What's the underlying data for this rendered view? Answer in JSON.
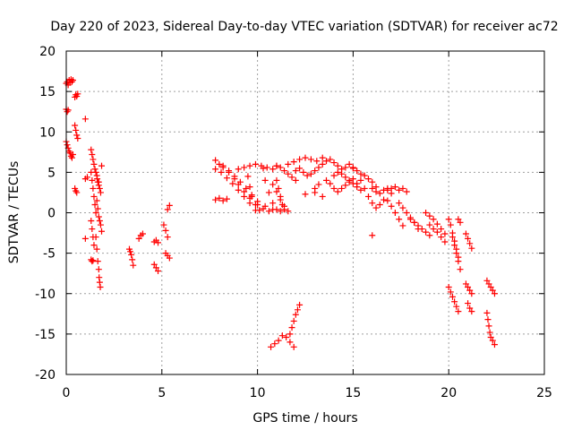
{
  "chart_data": {
    "type": "scatter",
    "title": "Day 220 of 2023, Sidereal Day-to-day VTEC variation (SDTVAR) for receiver ac72",
    "xlabel": "GPS time / hours",
    "ylabel": "SDTVAR / TECUs",
    "xlim": [
      0,
      25
    ],
    "ylim": [
      -20,
      20
    ],
    "xticks": [
      0,
      5,
      10,
      15,
      20,
      25
    ],
    "xtick_labels": [
      "0",
      "5",
      "10",
      "15",
      "20",
      "25"
    ],
    "yticks": [
      -20,
      -15,
      -10,
      -5,
      0,
      5,
      10,
      15,
      20
    ],
    "ytick_labels": [
      "-20",
      "-15",
      "-10",
      "-5",
      "0",
      "5",
      "10",
      "15",
      "20"
    ],
    "grid": true,
    "marker": "+",
    "color": "#ff0000",
    "series": [
      {
        "name": "SDTVAR",
        "segments": [
          {
            "x": [
              0.0,
              0.05,
              0.1,
              0.15,
              0.2,
              0.25,
              0.3,
              0.35
            ],
            "y": [
              16.0,
              16.2,
              15.8,
              16.4,
              16.1,
              16.5,
              16.2,
              16.4
            ]
          },
          {
            "x": [
              0.0,
              0.05,
              0.1
            ],
            "y": [
              12.8,
              12.5,
              12.7
            ]
          },
          {
            "x": [
              0.0,
              0.05,
              0.1,
              0.15,
              0.2,
              0.25,
              0.3,
              0.35
            ],
            "y": [
              8.8,
              8.4,
              8.0,
              7.6,
              7.4,
              7.0,
              6.8,
              7.2
            ]
          },
          {
            "x": [
              0.45,
              0.5,
              0.55,
              0.6
            ],
            "y": [
              14.3,
              14.6,
              14.4,
              14.7
            ]
          },
          {
            "x": [
              0.45,
              0.5,
              0.55,
              0.6
            ],
            "y": [
              10.8,
              10.2,
              9.6,
              9.2
            ]
          },
          {
            "x": [
              0.45,
              0.5,
              0.55
            ],
            "y": [
              3.0,
              2.7,
              2.5
            ]
          },
          {
            "x": [
              1.0
            ],
            "y": [
              11.6
            ]
          },
          {
            "x": [
              1.0,
              1.1
            ],
            "y": [
              4.2,
              4.4
            ]
          },
          {
            "x": [
              1.0
            ],
            "y": [
              -3.2
            ]
          },
          {
            "x": [
              1.3,
              1.35,
              1.4,
              1.45,
              1.5,
              1.55,
              1.6,
              1.62,
              1.65,
              1.7
            ],
            "y": [
              7.8,
              7.2,
              6.6,
              6.0,
              5.4,
              5.0,
              4.6,
              4.2,
              3.8,
              3.4
            ]
          },
          {
            "x": [
              1.3,
              1.35,
              1.4,
              1.45,
              1.5,
              1.55
            ],
            "y": [
              5.0,
              4.0,
              3.0,
              2.0,
              1.0,
              0.0
            ]
          },
          {
            "x": [
              1.3,
              1.35,
              1.4,
              1.45
            ],
            "y": [
              -1.0,
              -2.0,
              -3.0,
              -4.0
            ]
          },
          {
            "x": [
              1.3,
              1.35,
              1.4
            ],
            "y": [
              -5.8,
              -6.0,
              -5.9
            ]
          },
          {
            "x": [
              1.55,
              1.6,
              1.65,
              1.7,
              1.72,
              1.75,
              1.78
            ],
            "y": [
              -3.0,
              -4.5,
              -6.0,
              -7.0,
              -8.0,
              -8.6,
              -9.2
            ]
          },
          {
            "x": [
              1.6,
              1.65,
              1.7,
              1.75,
              1.8,
              1.85
            ],
            "y": [
              1.5,
              0.5,
              -0.5,
              -1.0,
              -1.5,
              -2.3
            ]
          },
          {
            "x": [
              1.7,
              1.75,
              1.8,
              1.85
            ],
            "y": [
              3.8,
              3.0,
              2.5,
              5.8
            ]
          },
          {
            "x": [
              3.3,
              3.35,
              3.4,
              3.45,
              3.5
            ],
            "y": [
              -4.5,
              -4.8,
              -5.2,
              -5.8,
              -6.5
            ]
          },
          {
            "x": [
              3.8,
              3.9,
              4.0
            ],
            "y": [
              -3.2,
              -2.8,
              -2.6
            ]
          },
          {
            "x": [
              4.6,
              4.7,
              4.8
            ],
            "y": [
              -3.6,
              -3.4,
              -3.7
            ]
          },
          {
            "x": [
              4.6,
              4.7,
              4.8
            ],
            "y": [
              -6.4,
              -6.8,
              -7.2
            ]
          },
          {
            "x": [
              5.1,
              5.2,
              5.3
            ],
            "y": [
              -1.5,
              -2.2,
              -3.0
            ]
          },
          {
            "x": [
              5.3,
              5.4
            ],
            "y": [
              0.4,
              0.9
            ]
          },
          {
            "x": [
              5.2,
              5.3,
              5.4
            ],
            "y": [
              -5.0,
              -5.3,
              -5.6
            ]
          },
          {
            "x": [
              7.8,
              8.0,
              8.2,
              8.4
            ],
            "y": [
              1.6,
              1.8,
              1.5,
              1.7
            ]
          },
          {
            "x": [
              7.8,
              8.0,
              8.2,
              8.5,
              8.8,
              9.0,
              9.3,
              9.6,
              10.0,
              10.3,
              10.6
            ],
            "y": [
              6.5,
              6.0,
              5.6,
              5.0,
              4.2,
              3.5,
              2.6,
              1.8,
              1.0,
              0.5,
              0.2
            ]
          },
          {
            "x": [
              7.8,
              8.1,
              8.4,
              8.7,
              9.0,
              9.3,
              9.6,
              9.9
            ],
            "y": [
              5.4,
              5.0,
              4.3,
              3.6,
              2.8,
              2.0,
              1.2,
              0.3
            ]
          },
          {
            "x": [
              8.2,
              8.5,
              8.8,
              9.1,
              9.4,
              9.7,
              10.0,
              10.4,
              10.8
            ],
            "y": [
              5.8,
              5.2,
              4.5,
              3.8,
              3.0,
              2.2,
              1.4,
              0.8,
              0.4
            ]
          },
          {
            "x": [
              9.0,
              9.3,
              9.6,
              9.9,
              10.2,
              10.5,
              10.8,
              11.0
            ],
            "y": [
              5.4,
              5.6,
              5.8,
              6.0,
              5.8,
              5.6,
              5.4,
              5.8
            ]
          },
          {
            "x": [
              9.5,
              9.6,
              9.7,
              9.9,
              10.1
            ],
            "y": [
              4.5,
              3.2,
              2.0,
              1.0,
              0.3
            ]
          },
          {
            "x": [
              10.3,
              10.4,
              10.6,
              10.8,
              11.0,
              11.2
            ],
            "y": [
              5.5,
              4.0,
              2.5,
              1.2,
              0.4,
              0.2
            ]
          },
          {
            "x": [
              11.0,
              11.2,
              11.4,
              11.6,
              11.8,
              12.0
            ],
            "y": [
              5.8,
              5.6,
              5.2,
              4.8,
              4.4,
              4.0
            ]
          },
          {
            "x": [
              11.0,
              11.1,
              11.2,
              11.3,
              11.4
            ],
            "y": [
              4.0,
              3.0,
              2.0,
              1.0,
              0.4
            ]
          },
          {
            "x": [
              10.8,
              11.0,
              11.2,
              11.4,
              11.6
            ],
            "y": [
              3.5,
              2.6,
              1.6,
              0.8,
              0.2
            ]
          },
          {
            "x": [
              12.0,
              12.2,
              12.4,
              12.6,
              12.8,
              13.0,
              13.2
            ],
            "y": [
              5.2,
              5.5,
              5.0,
              4.6,
              4.8,
              5.2,
              5.6
            ]
          },
          {
            "x": [
              11.6,
              11.9,
              12.2,
              12.5,
              12.8,
              13.1,
              13.4
            ],
            "y": [
              6.0,
              6.3,
              6.6,
              6.8,
              6.6,
              6.4,
              6.8
            ]
          },
          {
            "x": [
              12.5,
              13.0
            ],
            "y": [
              2.3,
              2.5
            ]
          },
          {
            "x": [
              13.0,
              13.2,
              13.4
            ],
            "y": [
              3.0,
              3.5,
              2.0
            ]
          },
          {
            "x": [
              13.4,
              13.6,
              13.8,
              14.0,
              14.2,
              14.4,
              14.6,
              14.8,
              15.0
            ],
            "y": [
              6.0,
              6.4,
              6.6,
              6.2,
              5.8,
              5.4,
              5.6,
              6.0,
              5.6
            ]
          },
          {
            "x": [
              13.6,
              13.8,
              14.0,
              14.2,
              14.4,
              14.6,
              14.8,
              15.0,
              15.2
            ],
            "y": [
              4.0,
              3.6,
              3.0,
              2.6,
              3.0,
              3.4,
              3.8,
              4.2,
              3.6
            ]
          },
          {
            "x": [
              14.0,
              14.2,
              14.4,
              14.6,
              14.8,
              15.0,
              15.2,
              15.4
            ],
            "y": [
              4.6,
              5.0,
              4.8,
              4.4,
              4.0,
              3.6,
              3.2,
              2.8
            ]
          },
          {
            "x": [
              15.0,
              15.2,
              15.4,
              15.6,
              15.8,
              16.0,
              16.2
            ],
            "y": [
              5.5,
              5.2,
              4.8,
              4.6,
              4.2,
              3.8,
              3.2
            ]
          },
          {
            "x": [
              15.4,
              15.6,
              15.8,
              16.0,
              16.2,
              16.4,
              16.6
            ],
            "y": [
              4.0,
              3.0,
              2.0,
              1.2,
              0.6,
              1.0,
              1.6
            ]
          },
          {
            "x": [
              16.0,
              16.2,
              16.4,
              16.6,
              16.8,
              17.0
            ],
            "y": [
              3.0,
              2.6,
              2.4,
              2.8,
              3.0,
              2.4
            ]
          },
          {
            "x": [
              16.0
            ],
            "y": [
              -2.8
            ]
          },
          {
            "x": [
              16.8,
              17.0,
              17.2,
              17.4,
              17.6,
              17.8
            ],
            "y": [
              2.8,
              3.0,
              3.2,
              2.8,
              3.0,
              2.6
            ]
          },
          {
            "x": [
              16.8,
              17.0,
              17.2,
              17.4,
              17.6
            ],
            "y": [
              1.5,
              0.8,
              0.0,
              -0.8,
              -1.6
            ]
          },
          {
            "x": [
              17.4,
              17.6,
              17.8,
              18.0,
              18.2,
              18.4
            ],
            "y": [
              1.2,
              0.6,
              0.0,
              -0.6,
              -1.2,
              -2.0
            ]
          },
          {
            "x": [
              18.0,
              18.2,
              18.4,
              18.6,
              18.8,
              19.0
            ],
            "y": [
              -0.8,
              -1.2,
              -1.6,
              -2.0,
              -2.4,
              -2.8
            ]
          },
          {
            "x": [
              18.8,
              19.0,
              19.2,
              19.4,
              19.6,
              19.8
            ],
            "y": [
              0.0,
              -0.4,
              -0.8,
              -1.4,
              -2.0,
              -2.6
            ]
          },
          {
            "x": [
              19.0,
              19.2,
              19.4,
              19.6,
              19.8
            ],
            "y": [
              -1.5,
              -2.0,
              -2.4,
              -3.0,
              -3.6
            ]
          },
          {
            "x": [
              20.0,
              20.1,
              20.2,
              20.3,
              20.4,
              20.5
            ],
            "y": [
              -0.8,
              -1.5,
              -2.5,
              -3.5,
              -4.5,
              -5.5
            ]
          },
          {
            "x": [
              20.2,
              20.3,
              20.4,
              20.5,
              20.6
            ],
            "y": [
              -3.0,
              -4.0,
              -5.0,
              -6.0,
              -7.0
            ]
          },
          {
            "x": [
              20.5,
              20.6
            ],
            "y": [
              -0.8,
              -1.2
            ]
          },
          {
            "x": [
              20.0,
              20.1,
              20.2,
              20.3,
              20.4,
              20.5
            ],
            "y": [
              -9.2,
              -9.8,
              -10.4,
              -11.0,
              -11.6,
              -12.2
            ]
          },
          {
            "x": [
              20.9,
              21.0,
              21.1,
              21.2
            ],
            "y": [
              -2.6,
              -3.2,
              -3.8,
              -4.4
            ]
          },
          {
            "x": [
              20.9,
              21.0,
              21.1,
              21.2
            ],
            "y": [
              -8.8,
              -9.2,
              -9.6,
              -10.0
            ]
          },
          {
            "x": [
              21.0,
              21.1,
              21.2
            ],
            "y": [
              -11.2,
              -11.8,
              -12.2
            ]
          },
          {
            "x": [
              22.0,
              22.1,
              22.2,
              22.3,
              22.4
            ],
            "y": [
              -8.4,
              -8.8,
              -9.2,
              -9.6,
              -10.0
            ]
          },
          {
            "x": [
              22.0,
              22.05,
              22.1,
              22.15,
              22.2,
              22.3,
              22.4
            ],
            "y": [
              -12.4,
              -13.2,
              -14.0,
              -14.8,
              -15.4,
              -15.8,
              -16.3
            ]
          },
          {
            "x": [
              10.7,
              10.9,
              11.1,
              11.3,
              11.5,
              11.7,
              11.9
            ],
            "y": [
              -16.6,
              -16.2,
              -15.8,
              -15.2,
              -15.4,
              -16.0,
              -16.6
            ]
          },
          {
            "x": [
              11.7,
              11.8,
              11.9,
              12.0,
              12.1,
              12.2
            ],
            "y": [
              -15.0,
              -14.2,
              -13.4,
              -12.6,
              -12.0,
              -11.4
            ]
          }
        ]
      }
    ]
  }
}
